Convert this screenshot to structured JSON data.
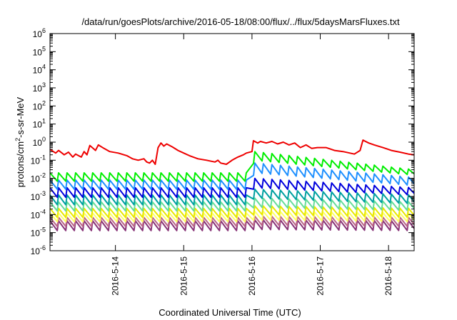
{
  "chart_data": {
    "type": "line",
    "title": "/data/run/goesPlots/archive/2016-05-18/08:00/flux/../flux/5daysMarsFluxes.txt",
    "xlabel": "Coordinated Universal Time (UTC)",
    "ylabel": "protons/cm²-s-sr-MeV",
    "y_scale": "log",
    "ylim": [
      1e-06,
      1000000.0
    ],
    "xlim": [
      "2016-05-13 01:00",
      "2016-05-18 09:00"
    ],
    "grid": false,
    "legend": "none",
    "x_ticks": [
      "2016-5-14",
      "2016-5-15",
      "2016-5-16",
      "2016-5-17",
      "2016-5-18"
    ],
    "y_ticks": [
      {
        "base": "10",
        "exp": "6"
      },
      {
        "base": "10",
        "exp": "5"
      },
      {
        "base": "10",
        "exp": "4"
      },
      {
        "base": "10",
        "exp": "3"
      },
      {
        "base": "10",
        "exp": "2"
      },
      {
        "base": "10",
        "exp": "1"
      },
      {
        "base": "10",
        "exp": "0"
      },
      {
        "base": "10",
        "exp": "-1"
      },
      {
        "base": "10",
        "exp": "-2"
      },
      {
        "base": "10",
        "exp": "-3"
      },
      {
        "base": "10",
        "exp": "-4"
      },
      {
        "base": "10",
        "exp": "-5"
      },
      {
        "base": "10",
        "exp": "-6"
      }
    ],
    "series": [
      {
        "color": "#ee0000",
        "kind": "red-sawtooth",
        "points": [
          [
            "2016-05-13 01:00",
            0.4
          ],
          [
            "2016-05-13 03:00",
            0.25
          ],
          [
            "2016-05-13 04:00",
            0.35
          ],
          [
            "2016-05-13 06:00",
            0.2
          ],
          [
            "2016-05-13 07:30",
            0.28
          ],
          [
            "2016-05-13 09:00",
            0.15
          ],
          [
            "2016-05-13 10:00",
            0.22
          ],
          [
            "2016-05-13 12:00",
            0.15
          ],
          [
            "2016-05-13 13:00",
            0.3
          ],
          [
            "2016-05-13 14:00",
            0.2
          ],
          [
            "2016-05-13 15:00",
            0.65
          ],
          [
            "2016-05-13 17:00",
            0.35
          ],
          [
            "2016-05-13 18:00",
            0.7
          ],
          [
            "2016-05-13 20:00",
            0.45
          ],
          [
            "2016-05-13 22:00",
            0.3
          ],
          [
            "2016-05-14 01:00",
            0.25
          ],
          [
            "2016-05-14 04:00",
            0.18
          ],
          [
            "2016-05-14 06:00",
            0.12
          ],
          [
            "2016-05-14 08:00",
            0.1
          ],
          [
            "2016-05-14 10:00",
            0.12
          ],
          [
            "2016-05-14 11:00",
            0.08
          ],
          [
            "2016-05-14 12:00",
            0.07
          ],
          [
            "2016-05-14 13:00",
            0.1
          ],
          [
            "2016-05-14 14:00",
            0.06
          ],
          [
            "2016-05-14 15:00",
            0.5
          ],
          [
            "2016-05-14 16:00",
            0.9
          ],
          [
            "2016-05-14 17:00",
            0.6
          ],
          [
            "2016-05-14 18:00",
            0.8
          ],
          [
            "2016-05-14 20:00",
            0.55
          ],
          [
            "2016-05-14 22:00",
            0.35
          ],
          [
            "2016-05-15 00:00",
            0.25
          ],
          [
            "2016-05-15 02:00",
            0.18
          ],
          [
            "2016-05-15 05:00",
            0.12
          ],
          [
            "2016-05-15 08:00",
            0.1
          ],
          [
            "2016-05-15 11:00",
            0.08
          ],
          [
            "2016-05-15 12:00",
            0.1
          ],
          [
            "2016-05-15 13:00",
            0.07
          ],
          [
            "2016-05-15 15:00",
            0.06
          ],
          [
            "2016-05-15 17:00",
            0.1
          ],
          [
            "2016-05-15 19:00",
            0.15
          ],
          [
            "2016-05-15 21:00",
            0.2
          ],
          [
            "2016-05-15 22:00",
            0.25
          ],
          [
            "2016-05-16 00:00",
            0.3
          ],
          [
            "2016-05-16 00:30",
            1.2
          ],
          [
            "2016-05-16 02:00",
            0.9
          ],
          [
            "2016-05-16 03:00",
            1.1
          ],
          [
            "2016-05-16 05:00",
            0.9
          ],
          [
            "2016-05-16 07:00",
            1.1
          ],
          [
            "2016-05-16 09:00",
            0.8
          ],
          [
            "2016-05-16 11:00",
            1.0
          ],
          [
            "2016-05-16 13:00",
            0.7
          ],
          [
            "2016-05-16 15:00",
            0.9
          ],
          [
            "2016-05-16 17:00",
            0.5
          ],
          [
            "2016-05-16 19:00",
            0.7
          ],
          [
            "2016-05-16 21:00",
            0.45
          ],
          [
            "2016-05-16 23:00",
            0.5
          ],
          [
            "2016-05-17 02:00",
            0.5
          ],
          [
            "2016-05-17 05:00",
            0.35
          ],
          [
            "2016-05-17 08:00",
            0.3
          ],
          [
            "2016-05-17 12:00",
            0.22
          ],
          [
            "2016-05-17 14:00",
            0.35
          ],
          [
            "2016-05-17 15:00",
            1.3
          ],
          [
            "2016-05-17 17:00",
            0.9
          ],
          [
            "2016-05-17 19:00",
            0.7
          ],
          [
            "2016-05-17 22:00",
            0.5
          ],
          [
            "2016-05-18 01:00",
            0.35
          ],
          [
            "2016-05-18 04:00",
            0.28
          ],
          [
            "2016-05-18 07:00",
            0.22
          ],
          [
            "2016-05-18 09:00",
            0.2
          ]
        ]
      },
      {
        "color": "#00ee00",
        "kind": "sawtooth",
        "base_high": 0.02,
        "base_low": 0.007,
        "event_high": 0.3,
        "event_low": 0.1,
        "ramp_end_high": 0.03,
        "ramp_end_low": 0.015
      },
      {
        "color": "#1e90ff",
        "kind": "sawtooth",
        "base_high": 0.008,
        "base_low": 0.0025,
        "event_high": 0.07,
        "event_low": 0.02,
        "ramp_end_high": 0.011,
        "ramp_end_low": 0.004
      },
      {
        "color": "#0000dd",
        "kind": "sawtooth",
        "base_high": 0.003,
        "base_low": 0.0009,
        "event_high": 0.01,
        "event_low": 0.003,
        "ramp_end_high": 0.003,
        "ramp_end_low": 0.0012
      },
      {
        "color": "#00a0a0",
        "kind": "sawtooth",
        "base_high": 0.0012,
        "base_low": 0.00035,
        "event_high": 0.0025,
        "event_low": 0.0008,
        "ramp_end_high": 0.0012,
        "ramp_end_low": 0.0004
      },
      {
        "color": "#66dd99",
        "kind": "sawtooth",
        "base_high": 0.0005,
        "base_low": 0.00016,
        "event_high": 0.0008,
        "event_low": 0.00025,
        "ramp_end_high": 0.0005,
        "ramp_end_low": 0.00017
      },
      {
        "color": "#e8e800",
        "kind": "sawtooth",
        "base_high": 0.00022,
        "base_low": 7e-05,
        "event_high": 0.0003,
        "event_low": 0.0001,
        "ramp_end_high": 0.00022,
        "ramp_end_low": 7e-05
      },
      {
        "color": "#ffff66",
        "kind": "sawtooth",
        "base_high": 0.00012,
        "base_low": 4e-05,
        "event_high": 0.00015,
        "event_low": 5e-05,
        "ramp_end_high": 0.00012,
        "ramp_end_low": 4e-05
      },
      {
        "color": "#bb6688",
        "kind": "sawtooth",
        "base_high": 7e-05,
        "base_low": 2.2e-05,
        "event_high": 8e-05,
        "event_low": 2.5e-05,
        "ramp_end_high": 7e-05,
        "ramp_end_low": 2.2e-05
      },
      {
        "color": "#883377",
        "kind": "sawtooth",
        "base_high": 4.5e-05,
        "base_low": 1.3e-05,
        "event_high": 5e-05,
        "event_low": 1.5e-05,
        "ramp_end_high": 4.5e-05,
        "ramp_end_low": 1.3e-05
      }
    ],
    "sawtooth_period_hours": 3,
    "event_start": "2016-05-15 22:00",
    "event_peak": "2016-05-16 01:00",
    "event_decay_end": "2016-05-18 09:00"
  }
}
